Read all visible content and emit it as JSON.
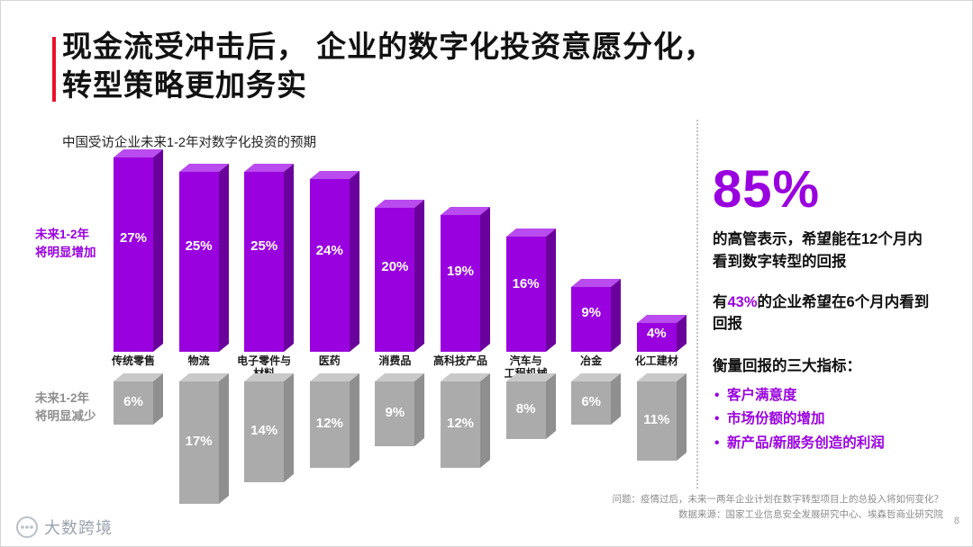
{
  "title": {
    "line1": "现金流受冲击后， 企业的数字化投资意愿分化，",
    "line2": "转型策略更加务实"
  },
  "chart": {
    "subtitle": "中国受访企业未来1-2年对数字化投资的预期"
  },
  "chart_data": {
    "type": "bar",
    "title": "中国受访企业未来1-2年对数字化投资的预期",
    "categories": [
      "传统零售",
      "物流",
      "电子零件与\n材料",
      "医药",
      "消费品",
      "高科技产品",
      "汽车与\n工程机械",
      "冶金",
      "化工建材"
    ],
    "series": [
      {
        "name": "未来1-2年将明显增加",
        "direction": "up",
        "color": "#9902DE",
        "values": [
          27,
          25,
          25,
          24,
          20,
          19,
          16,
          9,
          4
        ]
      },
      {
        "name": "未来1-2年将明显减少",
        "direction": "down",
        "color": "#ABABAB",
        "values": [
          6,
          17,
          14,
          12,
          9,
          12,
          8,
          6,
          11
        ]
      }
    ],
    "value_suffix": "%",
    "ylim": [
      0,
      27
    ],
    "grid": false,
    "legend_position": "left",
    "style": "3d-columns, increase above baseline, decrease hanging below category labels"
  },
  "axis_labels": {
    "increase": "未来1-2年\n将明显增加",
    "decrease": "未来1-2年\n将明显减少"
  },
  "right_panel": {
    "big_stat": "85%",
    "big_stat_desc": "的高管表示，希望能在12个月内看到数字转型的回报",
    "stat2_prefix": "有",
    "stat2_value": "43%",
    "stat2_suffix": "的企业希望在6个月内看到回报",
    "metrics_title": "衡量回报的三大指标：",
    "metrics": [
      "客户满意度",
      "市场份额的增加",
      "新产品/新服务创造的利润"
    ]
  },
  "footer": {
    "question": "问题：疫情过后，未来一两年企业计划在数字转型项目上的总投入将如何变化？",
    "source": "数据来源：国家工业信息安全发展研究中心、埃森哲商业研究院",
    "page": "8",
    "logo_text": "大数跨境"
  },
  "colors": {
    "purple": "#9902DE",
    "purple_dark": "#6B019C",
    "purple_light": "#B94BEF",
    "gray": "#ABABAB",
    "gray_dark": "#8F8F8F",
    "gray_light": "#C9C9C9",
    "red_accent": "#E8112D"
  }
}
